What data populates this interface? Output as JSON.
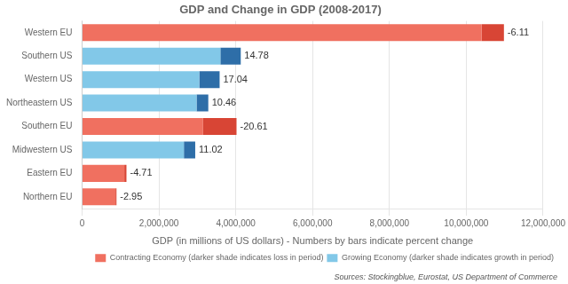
{
  "chart_data": {
    "type": "bar",
    "orientation": "horizontal",
    "stacked": true,
    "title": "GDP and Change in GDP (2008-2017)",
    "xlabel": "GDP (in millions of US dollars) - Numbers by bars indicate percent change",
    "source": "Sources: Stockingblue, Eurostat, US Department of Commerce",
    "categories": [
      "Western EU",
      "Southern US",
      "Western US",
      "Northeastern US",
      "Southern EU",
      "Midwestern US",
      "Eastern EU",
      "Northern EU"
    ],
    "series": [
      {
        "name": "Contracting Economy (darker shade indicates loss in period)",
        "color": "#F07060",
        "values": [
          10400000,
          null,
          null,
          null,
          3150000,
          null,
          1100000,
          870000
        ]
      },
      {
        "name": "Growing Economy (darker shade indicates growth in period)",
        "color": "#82C8E8",
        "values": [
          null,
          3600000,
          3050000,
          2980000,
          null,
          2650000,
          null,
          null
        ]
      },
      {
        "color": "#D84535",
        "values": [
          580000,
          null,
          null,
          null,
          870000,
          null,
          55000,
          26000
        ]
      },
      {
        "color": "#2E6EA8",
        "values": [
          null,
          530000,
          530000,
          305000,
          null,
          295000,
          null,
          null
        ]
      }
    ],
    "percent_change": [
      -6.11,
      14.78,
      17.04,
      10.46,
      -20.61,
      11.02,
      -4.71,
      -2.95
    ],
    "xlim": [
      0,
      12000000
    ],
    "xticks": [
      0,
      {
        "value": 2000000,
        "label": "2,000,000"
      },
      {
        "value": 4000000,
        "label": "4,000,000"
      },
      {
        "value": 6000000,
        "label": "6,000,000"
      },
      {
        "value": 8000000,
        "label": "8,000,000"
      },
      {
        "value": 10000000,
        "label": "10,000,000"
      },
      {
        "value": 12000000,
        "label": "12,000,000"
      }
    ],
    "grid": true,
    "legend": "lower right"
  }
}
